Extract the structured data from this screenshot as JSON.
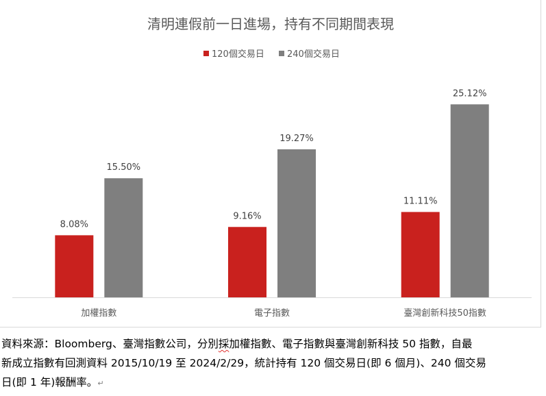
{
  "chart_data": {
    "type": "bar",
    "title": "清明連假前一日進場，持有不同期間表現",
    "categories": [
      "加權指數",
      "電子指數",
      "臺灣創新科技50指數"
    ],
    "series": [
      {
        "name": "120個交易日",
        "values": [
          8.08,
          9.16,
          11.11
        ],
        "labels": [
          "8.08%",
          "9.16%",
          "11.11%"
        ],
        "color": "#c9211e"
      },
      {
        "name": "240個交易日",
        "values": [
          15.5,
          19.27,
          25.12
        ],
        "labels": [
          "15.50%",
          "19.27%",
          "25.12%"
        ],
        "color": "#7f7f7f"
      }
    ],
    "ylim": [
      0,
      28
    ],
    "legend_position": "top",
    "grid": false
  },
  "caption": {
    "line1_a": "資料來源：Bloomberg、臺灣指數公司，分別",
    "line1_b": "採",
    "line1_c": "加權指數、電子指數與臺灣創新科技 50 指數，自最",
    "line2": "新成立指數有回測資料 2015/10/19 至 2024/2/29，統計持有 120 個交易日(即 6 個月)、240 個交易",
    "line3": "日(即 1 年)報酬率。",
    "para_mark": "↵"
  }
}
